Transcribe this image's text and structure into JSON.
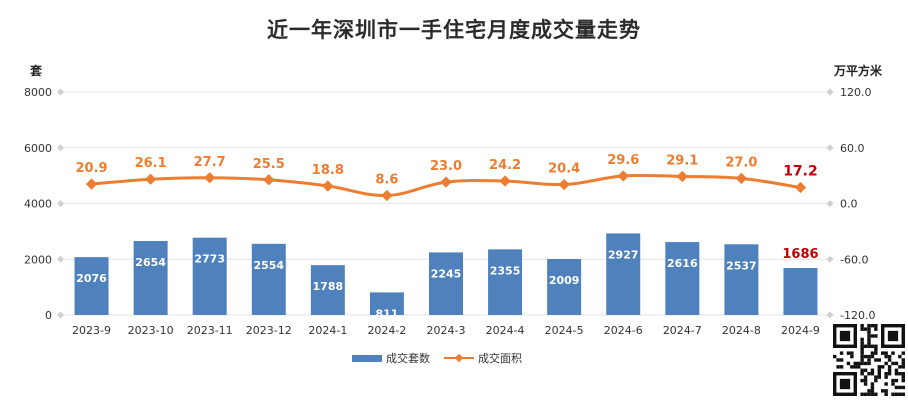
{
  "chart_data": {
    "type": "bar",
    "title": "近一年深圳市一手住宅月度成交量走势",
    "categories": [
      "2023-9",
      "2023-10",
      "2023-11",
      "2023-12",
      "2024-1",
      "2024-2",
      "2024-3",
      "2024-4",
      "2024-5",
      "2024-6",
      "2024-7",
      "2024-8",
      "2024-9"
    ],
    "y_left": {
      "unit": "套",
      "ylim": [
        0,
        8000
      ],
      "ticks": [
        "0",
        "2000",
        "4000",
        "6000",
        "8000"
      ]
    },
    "y_right": {
      "unit": "万平方米",
      "ylim": [
        -120,
        120
      ],
      "ticks": [
        "-120.0",
        "-60.0",
        "0.0",
        "60.0",
        "120.0"
      ]
    },
    "series": [
      {
        "name": "成交套数",
        "kind": "bar",
        "axis": "left",
        "values": [
          2076,
          2654,
          2773,
          2554,
          1788,
          811,
          2245,
          2355,
          2009,
          2927,
          2616,
          2537,
          1686
        ],
        "labels": [
          "2076",
          "2654",
          "2773",
          "2554",
          "1788",
          "811",
          "2245",
          "2355",
          "2009",
          "2927",
          "2616",
          "2537",
          "1686"
        ]
      },
      {
        "name": "成交面积",
        "kind": "line",
        "axis": "right",
        "values": [
          20.9,
          26.1,
          27.7,
          25.5,
          18.8,
          8.6,
          23.0,
          24.2,
          20.4,
          29.6,
          29.1,
          27.0,
          17.2
        ],
        "labels": [
          "20.9",
          "26.1",
          "27.7",
          "25.5",
          "18.8",
          "8.6",
          "23.0",
          "24.2",
          "20.4",
          "29.6",
          "29.1",
          "27.0",
          "17.2"
        ]
      }
    ],
    "legend": "bottom-center",
    "grid": true
  },
  "colors": {
    "bar": "#4f81bd",
    "line": "#ed7d31",
    "highlight": "#c00000",
    "grid": "#e6e6e6",
    "axis_text": "#333333"
  },
  "icons": {
    "qr": "qr-code-icon"
  }
}
